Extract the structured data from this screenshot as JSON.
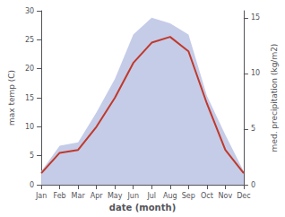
{
  "chart_data": {
    "type": "line",
    "categories": [
      "Jan",
      "Feb",
      "Mar",
      "Apr",
      "May",
      "Jun",
      "Jul",
      "Aug",
      "Sep",
      "Oct",
      "Nov",
      "Dec"
    ],
    "series": [
      {
        "type": "area",
        "color": "#c5cce8",
        "axis": "y2",
        "values": [
          1.2,
          3.5,
          3.8,
          6.5,
          9.5,
          13.5,
          15.0,
          14.5,
          13.5,
          8.0,
          4.5,
          1.2
        ]
      },
      {
        "type": "line",
        "color": "#c0392b",
        "values": [
          2.0,
          5.5,
          6.0,
          10.0,
          15.0,
          21.0,
          24.5,
          25.5,
          23.0,
          14.0,
          6.0,
          2.0
        ]
      }
    ],
    "xlabel": "date (month)",
    "ylabel": "max temp (C)",
    "y2label": "med. precipitation (kg/m2)",
    "ylim": [
      0,
      30
    ],
    "yticks": [
      0,
      5,
      10,
      15,
      20,
      25,
      30
    ],
    "y2lim": [
      0,
      15.625
    ],
    "y2ticks": [
      0,
      5,
      10,
      15
    ],
    "grid": false
  }
}
